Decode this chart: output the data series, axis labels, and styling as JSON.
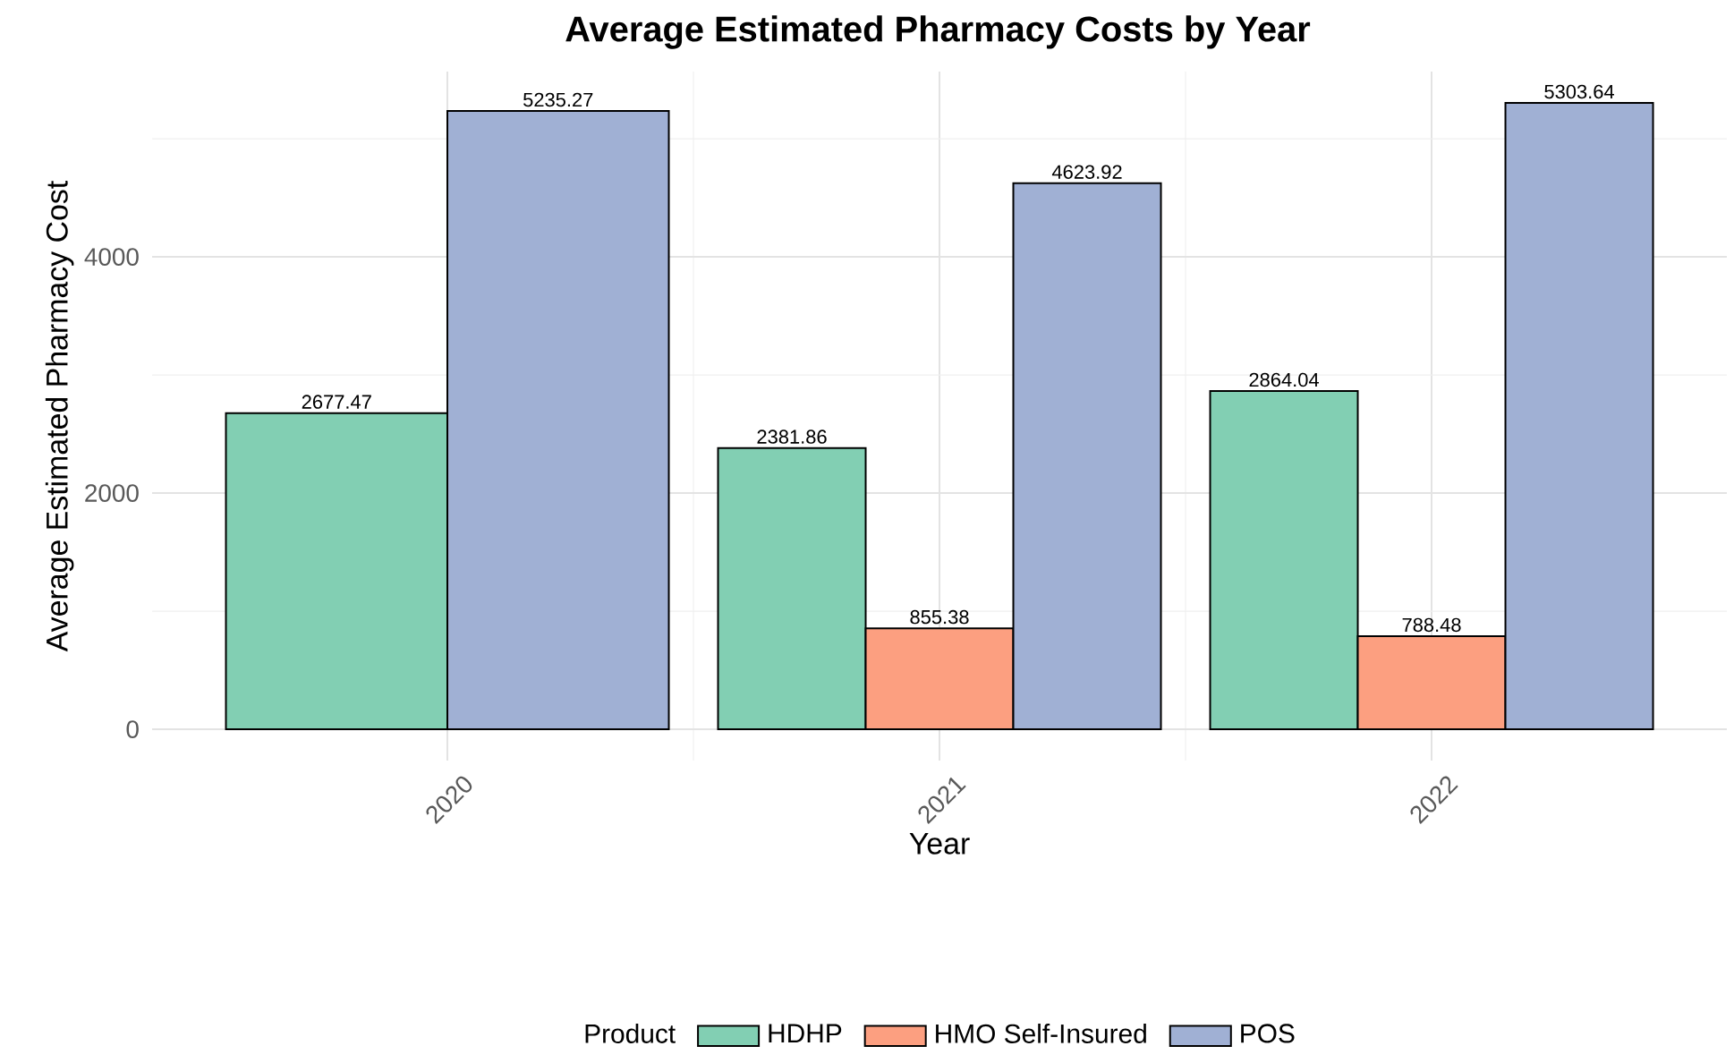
{
  "chart_data": {
    "type": "bar",
    "title": "Average Estimated Pharmacy Costs by Year",
    "xlabel": "Year",
    "ylabel": "Average Estimated Pharmacy Cost",
    "legend_title": "Product",
    "categories": [
      "2020",
      "2021",
      "2022"
    ],
    "series": [
      {
        "name": "HDHP",
        "color": "#82cfb3",
        "values": [
          2677.47,
          2381.86,
          2864.04
        ]
      },
      {
        "name": "HMO Self-Insured",
        "color": "#fc9f80",
        "values": [
          null,
          855.38,
          788.48
        ]
      },
      {
        "name": "POS",
        "color": "#a0b0d4",
        "values": [
          5235.27,
          4623.92,
          5303.64
        ]
      }
    ],
    "ylim": [
      -265,
      5569
    ],
    "yticks": [
      0,
      2000,
      4000
    ],
    "grid": true,
    "legend": "bottom",
    "data_labels": true
  }
}
